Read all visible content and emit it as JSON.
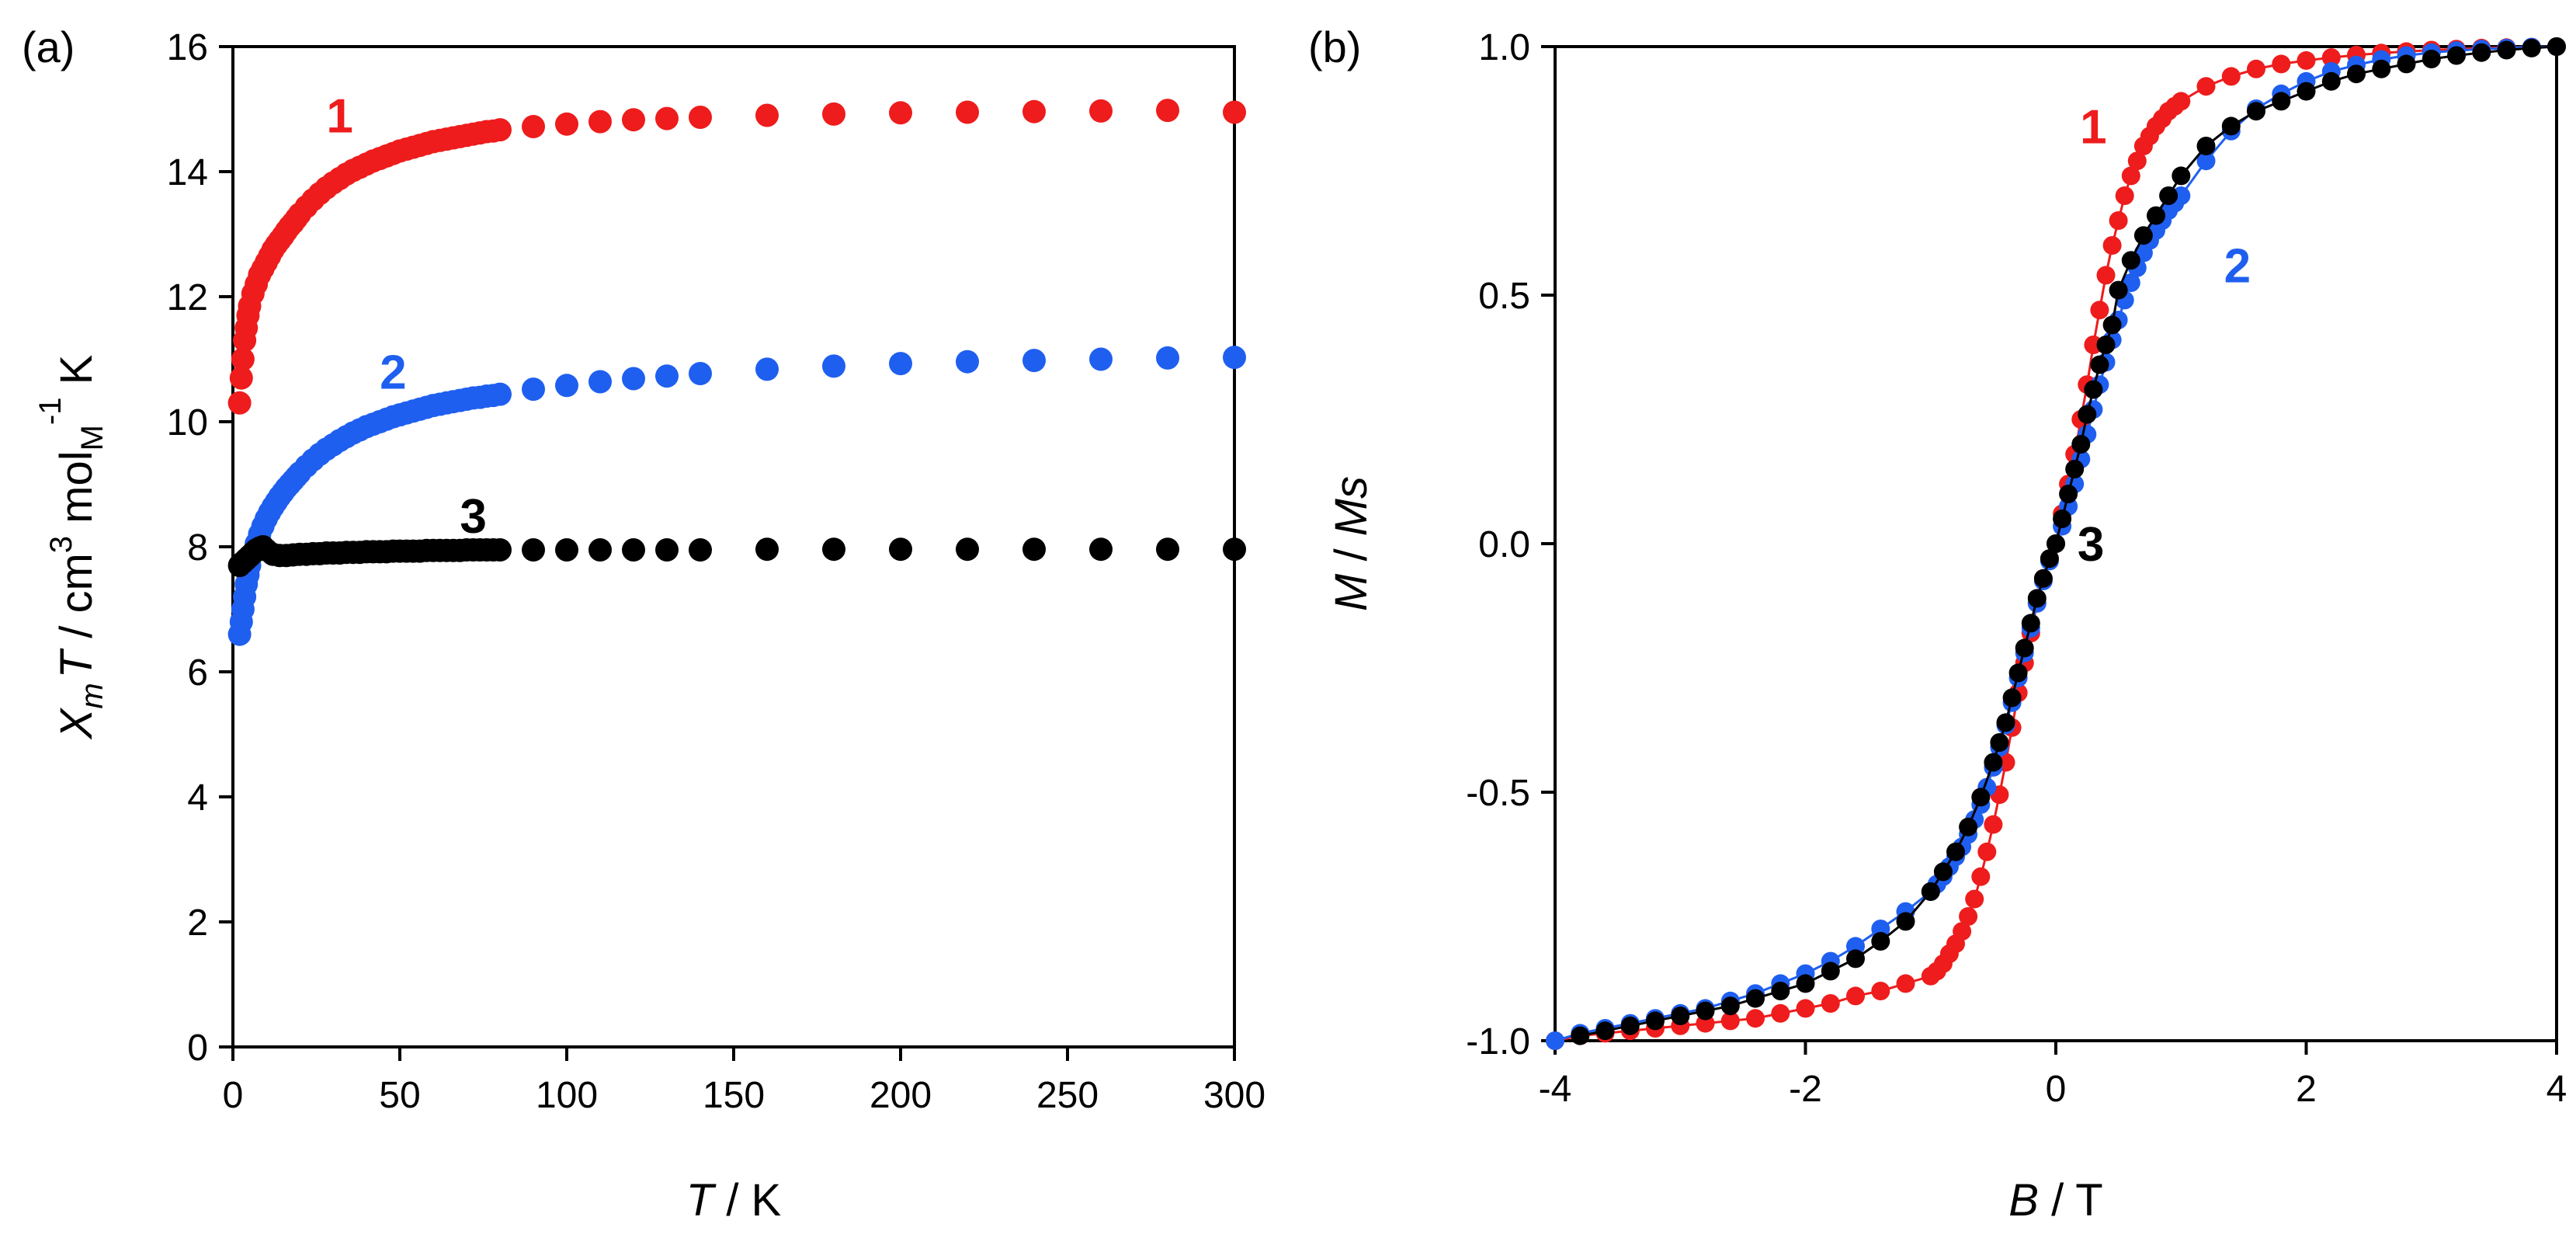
{
  "chart_data": [
    {
      "panel_label": "(a)",
      "type": "scatter",
      "xlabel_italic": "T",
      "xlabel_rest": " / K",
      "ylabel": {
        "chi": "X",
        "chi_sub": "m",
        "T": "T",
        "mid": " / cm",
        "sup3": "3",
        "mol": " mol",
        "mol_sub": "M",
        "sup_neg1": "-1",
        "K": " K"
      },
      "xlim": [
        0,
        300
      ],
      "ylim": [
        0,
        16
      ],
      "xticks": [
        0,
        50,
        100,
        150,
        200,
        250,
        300
      ],
      "xtick_labels": [
        "0",
        "50",
        "100",
        "150",
        "200",
        "250",
        "300"
      ],
      "yticks": [
        0,
        2,
        4,
        6,
        8,
        10,
        12,
        14,
        16
      ],
      "ytick_labels": [
        "0",
        "2",
        "4",
        "6",
        "8",
        "10",
        "12",
        "14",
        "16"
      ],
      "series": [
        {
          "name": "1",
          "color": "#ee1c1c",
          "label_pos": [
            32,
            14.9
          ],
          "x": [
            2,
            2.5,
            3,
            3.5,
            4,
            4.5,
            5,
            6,
            7,
            8,
            9,
            10,
            11,
            12,
            13,
            14,
            15,
            16,
            17,
            18,
            19,
            20,
            22,
            24,
            26,
            28,
            30,
            32,
            34,
            36,
            38,
            40,
            42,
            44,
            46,
            48,
            50,
            52,
            54,
            56,
            58,
            60,
            62,
            64,
            66,
            68,
            70,
            72,
            74,
            76,
            78,
            80,
            90,
            100,
            110,
            120,
            130,
            140,
            160,
            180,
            200,
            220,
            240,
            260,
            280,
            300
          ],
          "y": [
            10.3,
            10.7,
            11.0,
            11.3,
            11.5,
            11.7,
            11.85,
            12.05,
            12.2,
            12.35,
            12.45,
            12.55,
            12.65,
            12.75,
            12.83,
            12.9,
            12.97,
            13.05,
            13.12,
            13.18,
            13.25,
            13.32,
            13.44,
            13.55,
            13.65,
            13.74,
            13.82,
            13.89,
            13.96,
            14.02,
            14.07,
            14.12,
            14.17,
            14.21,
            14.25,
            14.29,
            14.33,
            14.36,
            14.39,
            14.42,
            14.45,
            14.48,
            14.5,
            14.52,
            14.54,
            14.56,
            14.58,
            14.6,
            14.62,
            14.64,
            14.65,
            14.67,
            14.72,
            14.76,
            14.8,
            14.83,
            14.85,
            14.87,
            14.9,
            14.92,
            14.94,
            14.95,
            14.96,
            14.97,
            14.98,
            14.95
          ]
        },
        {
          "name": "2",
          "color": "#1f5ff0",
          "label_pos": [
            48,
            10.8
          ],
          "x": [
            2,
            2.5,
            3,
            3.5,
            4,
            4.5,
            5,
            6,
            7,
            8,
            9,
            10,
            11,
            12,
            13,
            14,
            15,
            16,
            17,
            18,
            19,
            20,
            22,
            24,
            26,
            28,
            30,
            32,
            34,
            36,
            38,
            40,
            42,
            44,
            46,
            48,
            50,
            52,
            54,
            56,
            58,
            60,
            62,
            64,
            66,
            68,
            70,
            72,
            74,
            76,
            78,
            80,
            90,
            100,
            110,
            120,
            130,
            140,
            160,
            180,
            200,
            220,
            240,
            260,
            280,
            300
          ],
          "y": [
            6.6,
            6.8,
            7.0,
            7.2,
            7.4,
            7.55,
            7.7,
            7.9,
            8.05,
            8.2,
            8.33,
            8.45,
            8.55,
            8.64,
            8.72,
            8.8,
            8.87,
            8.94,
            9.0,
            9.06,
            9.12,
            9.18,
            9.29,
            9.39,
            9.48,
            9.56,
            9.63,
            9.7,
            9.76,
            9.82,
            9.87,
            9.92,
            9.96,
            10.0,
            10.04,
            10.08,
            10.11,
            10.14,
            10.17,
            10.2,
            10.23,
            10.26,
            10.28,
            10.3,
            10.32,
            10.34,
            10.36,
            10.38,
            10.39,
            10.41,
            10.42,
            10.44,
            10.52,
            10.58,
            10.64,
            10.69,
            10.73,
            10.77,
            10.84,
            10.89,
            10.93,
            10.96,
            10.98,
            11.0,
            11.02,
            11.03
          ]
        },
        {
          "name": "3",
          "color": "#000000",
          "label_pos": [
            72,
            8.5
          ],
          "x": [
            2,
            3,
            4,
            5,
            6,
            7,
            8,
            9,
            10,
            12,
            14,
            16,
            18,
            20,
            22,
            24,
            26,
            28,
            30,
            32,
            34,
            36,
            38,
            40,
            42,
            44,
            46,
            48,
            50,
            52,
            54,
            56,
            58,
            60,
            62,
            64,
            66,
            68,
            70,
            72,
            74,
            76,
            78,
            80,
            90,
            100,
            110,
            120,
            130,
            140,
            160,
            180,
            200,
            220,
            240,
            260,
            280,
            300
          ],
          "y": [
            7.7,
            7.75,
            7.8,
            7.85,
            7.9,
            7.95,
            7.98,
            8.0,
            7.95,
            7.88,
            7.86,
            7.86,
            7.87,
            7.88,
            7.88,
            7.89,
            7.89,
            7.9,
            7.9,
            7.9,
            7.91,
            7.91,
            7.91,
            7.92,
            7.92,
            7.92,
            7.92,
            7.93,
            7.93,
            7.93,
            7.93,
            7.93,
            7.94,
            7.94,
            7.94,
            7.94,
            7.94,
            7.94,
            7.95,
            7.95,
            7.95,
            7.95,
            7.95,
            7.95,
            7.95,
            7.95,
            7.95,
            7.95,
            7.95,
            7.95,
            7.96,
            7.96,
            7.96,
            7.96,
            7.96,
            7.96,
            7.96,
            7.96
          ]
        }
      ]
    },
    {
      "panel_label": "(b)",
      "type": "line",
      "xlabel_italic": "B",
      "xlabel_rest": " / T",
      "ylabel_a": "M",
      "ylabel_mid": " / ",
      "ylabel_b": "Ms",
      "xlim": [
        -4,
        4
      ],
      "ylim": [
        -1.0,
        1.0
      ],
      "xticks": [
        -4,
        -2,
        0,
        2,
        4
      ],
      "xtick_labels": [
        "-4",
        "-2",
        "0",
        "2",
        "4"
      ],
      "yticks": [
        -1.0,
        -0.5,
        0.0,
        0.5,
        1.0
      ],
      "ytick_labels": [
        "-1.0",
        "-0.5",
        "0.0",
        "0.5",
        "1.0"
      ],
      "series": [
        {
          "name": "1",
          "color": "#ee1c1c",
          "label_pos": [
            0.3,
            0.84
          ],
          "x": [
            -4.0,
            -3.8,
            -3.6,
            -3.4,
            -3.2,
            -3.0,
            -2.8,
            -2.6,
            -2.4,
            -2.2,
            -2.0,
            -1.8,
            -1.6,
            -1.4,
            -1.2,
            -1.0,
            -0.95,
            -0.9,
            -0.85,
            -0.8,
            -0.75,
            -0.7,
            -0.65,
            -0.6,
            -0.55,
            -0.5,
            -0.45,
            -0.4,
            -0.35,
            -0.3,
            -0.25,
            -0.2,
            -0.15,
            -0.1,
            -0.05,
            0.0,
            0.05,
            0.1,
            0.15,
            0.2,
            0.25,
            0.3,
            0.35,
            0.4,
            0.45,
            0.5,
            0.55,
            0.6,
            0.65,
            0.7,
            0.75,
            0.8,
            0.85,
            0.9,
            0.95,
            1.0,
            1.2,
            1.4,
            1.6,
            1.8,
            2.0,
            2.2,
            2.4,
            2.6,
            2.8,
            3.0,
            3.2,
            3.4,
            3.6,
            3.8,
            4.0
          ],
          "y": [
            -1.0,
            -0.99,
            -0.985,
            -0.98,
            -0.975,
            -0.97,
            -0.965,
            -0.96,
            -0.955,
            -0.945,
            -0.935,
            -0.925,
            -0.91,
            -0.9,
            -0.885,
            -0.87,
            -0.86,
            -0.845,
            -0.825,
            -0.805,
            -0.78,
            -0.75,
            -0.715,
            -0.67,
            -0.62,
            -0.565,
            -0.505,
            -0.44,
            -0.37,
            -0.3,
            -0.24,
            -0.18,
            -0.12,
            -0.07,
            -0.03,
            0.0,
            0.06,
            0.12,
            0.18,
            0.25,
            0.32,
            0.4,
            0.47,
            0.54,
            0.6,
            0.65,
            0.7,
            0.74,
            0.77,
            0.8,
            0.82,
            0.84,
            0.855,
            0.87,
            0.88,
            0.89,
            0.92,
            0.94,
            0.955,
            0.965,
            0.972,
            0.978,
            0.983,
            0.987,
            0.99,
            0.993,
            0.995,
            0.997,
            0.998,
            0.999,
            1.0
          ]
        },
        {
          "name": "2",
          "color": "#1f5ff0",
          "label_pos": [
            1.45,
            0.56
          ],
          "x": [
            -4.0,
            -3.8,
            -3.6,
            -3.4,
            -3.2,
            -3.0,
            -2.8,
            -2.6,
            -2.4,
            -2.2,
            -2.0,
            -1.8,
            -1.6,
            -1.4,
            -1.2,
            -1.0,
            -0.95,
            -0.9,
            -0.85,
            -0.8,
            -0.75,
            -0.7,
            -0.65,
            -0.6,
            -0.55,
            -0.5,
            -0.45,
            -0.4,
            -0.35,
            -0.3,
            -0.25,
            -0.2,
            -0.15,
            -0.1,
            -0.05,
            0.0,
            0.05,
            0.1,
            0.15,
            0.2,
            0.25,
            0.3,
            0.35,
            0.4,
            0.45,
            0.5,
            0.55,
            0.6,
            0.65,
            0.7,
            0.75,
            0.8,
            0.85,
            0.9,
            0.95,
            1.0,
            1.2,
            1.4,
            1.6,
            1.8,
            2.0,
            2.2,
            2.4,
            2.6,
            2.8,
            3.0,
            3.2,
            3.4,
            3.6,
            3.8,
            4.0
          ],
          "y": [
            -1.0,
            -0.985,
            -0.975,
            -0.965,
            -0.955,
            -0.945,
            -0.935,
            -0.92,
            -0.905,
            -0.885,
            -0.865,
            -0.84,
            -0.81,
            -0.775,
            -0.74,
            -0.7,
            -0.685,
            -0.67,
            -0.65,
            -0.63,
            -0.61,
            -0.585,
            -0.555,
            -0.525,
            -0.49,
            -0.45,
            -0.41,
            -0.365,
            -0.32,
            -0.27,
            -0.22,
            -0.17,
            -0.12,
            -0.075,
            -0.035,
            0.0,
            0.035,
            0.075,
            0.12,
            0.17,
            0.22,
            0.27,
            0.32,
            0.365,
            0.41,
            0.45,
            0.49,
            0.525,
            0.555,
            0.585,
            0.61,
            0.63,
            0.65,
            0.67,
            0.685,
            0.7,
            0.77,
            0.83,
            0.875,
            0.905,
            0.93,
            0.95,
            0.963,
            0.974,
            0.982,
            0.988,
            0.992,
            0.995,
            0.997,
            0.999,
            1.0
          ]
        },
        {
          "name": "3",
          "color": "#000000",
          "label_pos": [
            0.28,
            0.0
          ],
          "x": [
            -3.8,
            -3.6,
            -3.4,
            -3.2,
            -3.0,
            -2.8,
            -2.6,
            -2.4,
            -2.2,
            -2.0,
            -1.8,
            -1.6,
            -1.4,
            -1.2,
            -1.0,
            -0.9,
            -0.8,
            -0.7,
            -0.6,
            -0.5,
            -0.45,
            -0.4,
            -0.35,
            -0.3,
            -0.25,
            -0.2,
            -0.15,
            -0.1,
            -0.05,
            0.0,
            0.05,
            0.1,
            0.15,
            0.2,
            0.25,
            0.3,
            0.35,
            0.4,
            0.45,
            0.5,
            0.6,
            0.7,
            0.8,
            0.9,
            1.0,
            1.2,
            1.4,
            1.6,
            1.8,
            2.0,
            2.2,
            2.4,
            2.6,
            2.8,
            3.0,
            3.2,
            3.4,
            3.6,
            3.8,
            4.0
          ],
          "y": [
            -0.99,
            -0.98,
            -0.97,
            -0.96,
            -0.95,
            -0.94,
            -0.93,
            -0.915,
            -0.9,
            -0.885,
            -0.86,
            -0.835,
            -0.8,
            -0.76,
            -0.7,
            -0.66,
            -0.62,
            -0.57,
            -0.51,
            -0.44,
            -0.4,
            -0.36,
            -0.31,
            -0.26,
            -0.21,
            -0.16,
            -0.11,
            -0.07,
            -0.03,
            0.0,
            0.05,
            0.1,
            0.15,
            0.2,
            0.26,
            0.31,
            0.36,
            0.4,
            0.44,
            0.51,
            0.57,
            0.62,
            0.66,
            0.7,
            0.74,
            0.8,
            0.84,
            0.87,
            0.89,
            0.91,
            0.93,
            0.945,
            0.955,
            0.965,
            0.975,
            0.982,
            0.988,
            0.993,
            0.997,
            1.0
          ]
        }
      ]
    }
  ]
}
